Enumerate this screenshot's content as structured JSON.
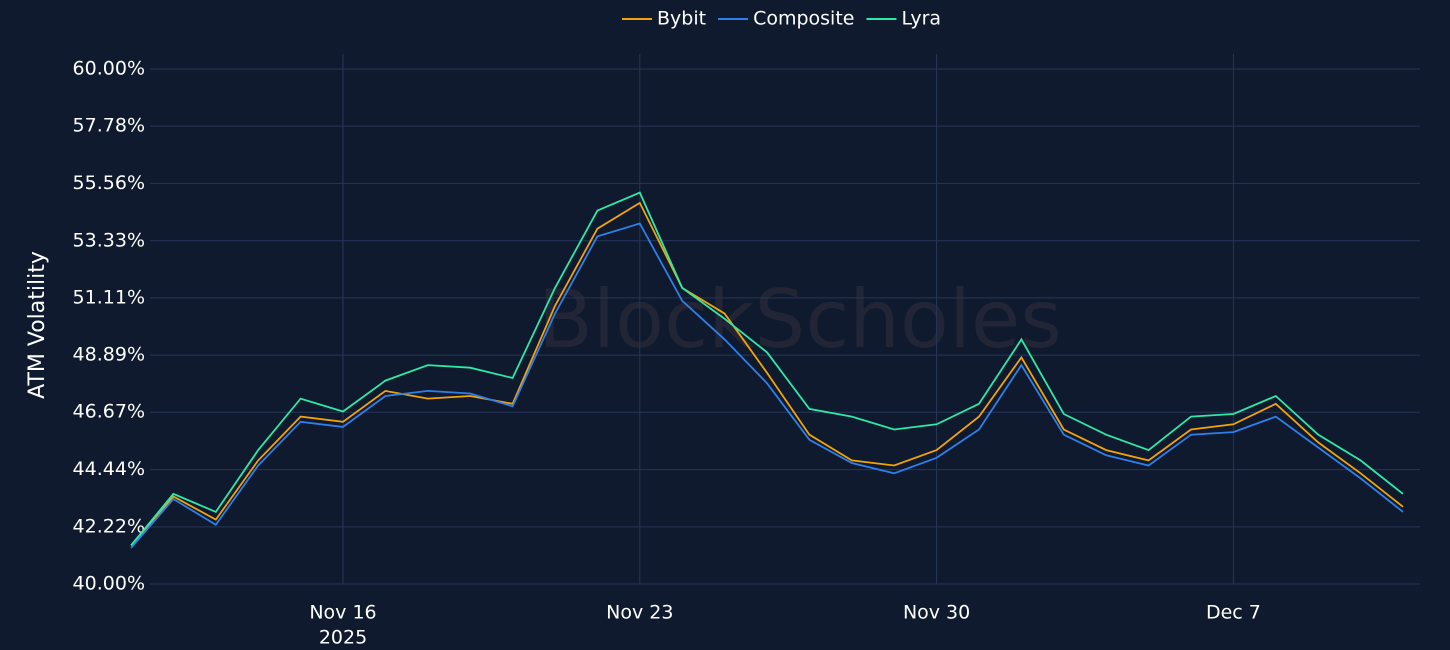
{
  "chart_data": {
    "type": "line",
    "y_label": "ATM Volatility",
    "watermark": "BlockScholes",
    "x": [
      "2025-11-11",
      "2025-11-12",
      "2025-11-13",
      "2025-11-14",
      "2025-11-15",
      "2025-11-16",
      "2025-11-17",
      "2025-11-18",
      "2025-11-19",
      "2025-11-20",
      "2025-11-21",
      "2025-11-22",
      "2025-11-23",
      "2025-11-24",
      "2025-11-25",
      "2025-11-26",
      "2025-11-27",
      "2025-11-28",
      "2025-11-29",
      "2025-11-30",
      "2025-12-01",
      "2025-12-02",
      "2025-12-03",
      "2025-12-04",
      "2025-12-05",
      "2025-12-06",
      "2025-12-07",
      "2025-12-08",
      "2025-12-09",
      "2025-12-10",
      "2025-12-11"
    ],
    "series": [
      {
        "name": "Bybit",
        "color": "#f0a30a",
        "values": [
          41.5,
          43.4,
          42.5,
          44.8,
          46.5,
          46.3,
          47.5,
          47.2,
          47.3,
          47.0,
          50.8,
          53.8,
          54.8,
          51.5,
          50.5,
          48.2,
          45.8,
          44.8,
          44.6,
          45.2,
          46.5,
          48.8,
          46.0,
          45.2,
          44.8,
          46.0,
          46.2,
          47.0,
          45.5,
          44.3,
          43.0
        ]
      },
      {
        "name": "Composite",
        "color": "#2f7fe8",
        "values": [
          41.4,
          43.3,
          42.3,
          44.6,
          46.3,
          46.1,
          47.3,
          47.5,
          47.4,
          46.9,
          50.5,
          53.5,
          54.0,
          51.0,
          49.5,
          47.8,
          45.6,
          44.7,
          44.3,
          44.9,
          46.0,
          48.5,
          45.8,
          45.0,
          44.6,
          45.8,
          45.9,
          46.5,
          45.3,
          44.1,
          42.8
        ]
      },
      {
        "name": "Lyra",
        "color": "#2ee8a6",
        "values": [
          41.5,
          43.5,
          42.8,
          45.2,
          47.2,
          46.7,
          47.9,
          48.5,
          48.4,
          48.0,
          51.5,
          54.5,
          55.2,
          51.5,
          50.3,
          49.0,
          46.8,
          46.5,
          46.0,
          46.2,
          47.0,
          49.5,
          46.6,
          45.8,
          45.2,
          46.5,
          46.6,
          47.3,
          45.8,
          44.8,
          43.5
        ]
      }
    ],
    "xlim": [
      "2025-11-11",
      "2025-12-11"
    ],
    "xticks": [
      {
        "value": "2025-11-16",
        "label": "Nov 16"
      },
      {
        "value": "2025-11-23",
        "label": "Nov 23"
      },
      {
        "value": "2025-11-30",
        "label": "Nov 30"
      },
      {
        "value": "2025-12-07",
        "label": "Dec 7"
      }
    ],
    "xtick_year": "2025",
    "ylim": [
      40,
      60
    ],
    "yticks": [
      {
        "value": 40,
        "label": "40.00%"
      },
      {
        "value": 42.22,
        "label": "42.22%"
      },
      {
        "value": 44.44,
        "label": "44.44%"
      },
      {
        "value": 46.67,
        "label": "46.67%"
      },
      {
        "value": 48.89,
        "label": "48.89%"
      },
      {
        "value": 51.11,
        "label": "51.11%"
      },
      {
        "value": 53.33,
        "label": "53.33%"
      },
      {
        "value": 55.56,
        "label": "55.56%"
      },
      {
        "value": 57.78,
        "label": "57.78%"
      },
      {
        "value": 60,
        "label": "60.00%"
      }
    ],
    "grid": true,
    "legend": "top"
  }
}
